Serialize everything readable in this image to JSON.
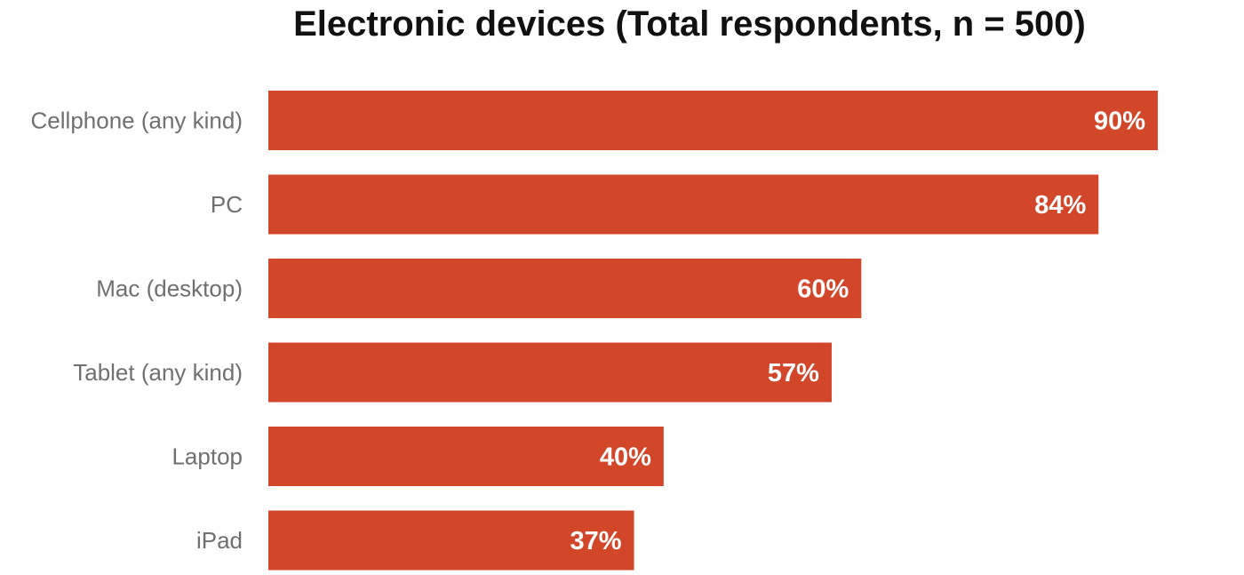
{
  "chart_data": {
    "type": "bar",
    "orientation": "horizontal",
    "title": "Electronic devices (Total respondents, n = 500)",
    "categories": [
      "Cellphone (any kind)",
      "PC",
      "Mac (desktop)",
      "Tablet (any kind)",
      "Laptop",
      "iPad"
    ],
    "values": [
      90,
      84,
      60,
      57,
      40,
      37
    ],
    "value_labels": [
      "90%",
      "84%",
      "60%",
      "57%",
      "40%",
      "37%"
    ],
    "unit": "%",
    "xlim": [
      0,
      90
    ],
    "grid": false,
    "legend": "none",
    "bar_color": "#d2462a",
    "label_color": "#707070",
    "value_label_color": "#ffffff"
  }
}
